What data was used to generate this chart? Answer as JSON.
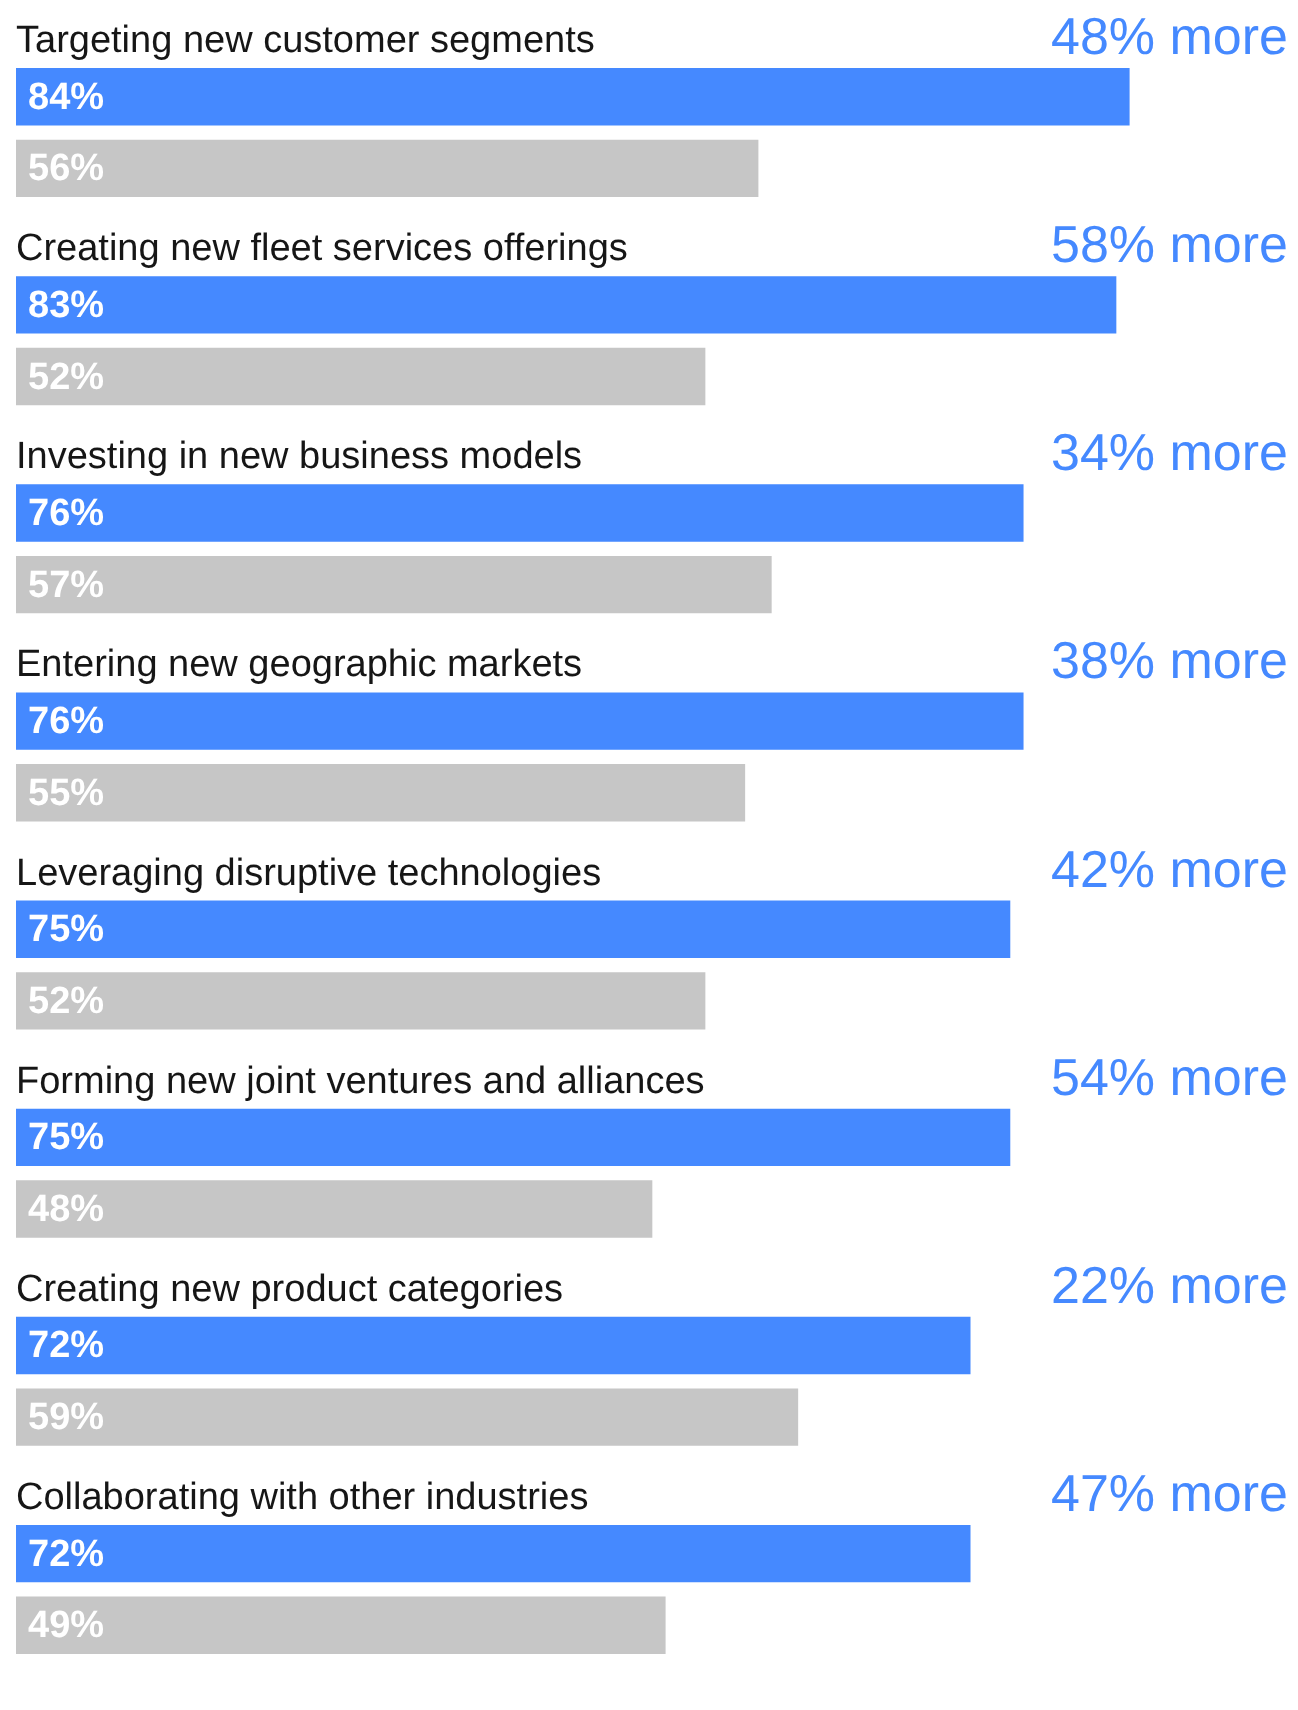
{
  "chart_data": {
    "type": "bar",
    "orientation": "horizontal",
    "legend": false,
    "categories": [
      "Targeting new customer segments",
      "Creating new fleet services offerings",
      "Investing in new business models",
      "Entering new geographic markets",
      "Leveraging disruptive technologies",
      "Forming new joint ventures and alliances",
      "Creating new product categories",
      "Collaborating with other industries"
    ],
    "series": [
      {
        "color": "#4589ff",
        "values": [
          84,
          83,
          76,
          76,
          75,
          75,
          72,
          72
        ],
        "value_labels": [
          "84%",
          "83%",
          "76%",
          "76%",
          "75%",
          "75%",
          "72%",
          "72%"
        ]
      },
      {
        "color": "#c6c6c6",
        "values": [
          56,
          52,
          57,
          55,
          52,
          48,
          59,
          49
        ],
        "value_labels": [
          "56%",
          "52%",
          "57%",
          "55%",
          "52%",
          "48%",
          "59%",
          "49%"
        ]
      }
    ],
    "annotations": [
      "48% more",
      "58% more",
      "34% more",
      "38% more",
      "42% more",
      "54% more",
      "22% more",
      "47% more"
    ]
  }
}
